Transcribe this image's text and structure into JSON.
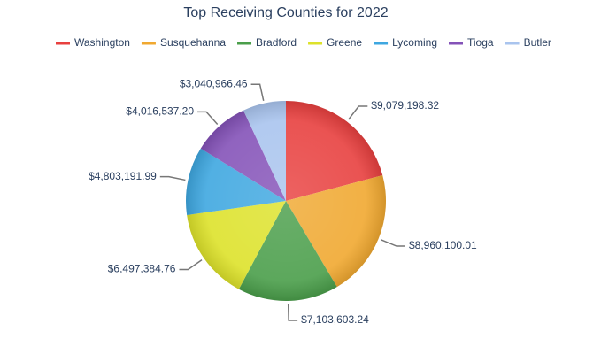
{
  "chart_data": {
    "type": "pie",
    "title": "Top Receiving Counties for 2022",
    "categories": [
      "Washington",
      "Susquehanna",
      "Bradford",
      "Greene",
      "Lycoming",
      "Tioga",
      "Butler"
    ],
    "values": [
      9079198.32,
      8960100.01,
      7103603.24,
      6497384.76,
      4803191.99,
      4016537.2,
      3040966.46
    ],
    "value_labels": [
      "$9,079,198.32",
      "$8,960,100.01",
      "$7,103,603.24",
      "$6,497,384.76",
      "$4,803,191.99",
      "$4,016,537.20",
      "$3,040,966.46"
    ],
    "colors": [
      "#e8403f",
      "#f0a830",
      "#4a9e4a",
      "#dde22a",
      "#3ea7e0",
      "#8452b8",
      "#a9c4ee"
    ],
    "legend": "top"
  }
}
